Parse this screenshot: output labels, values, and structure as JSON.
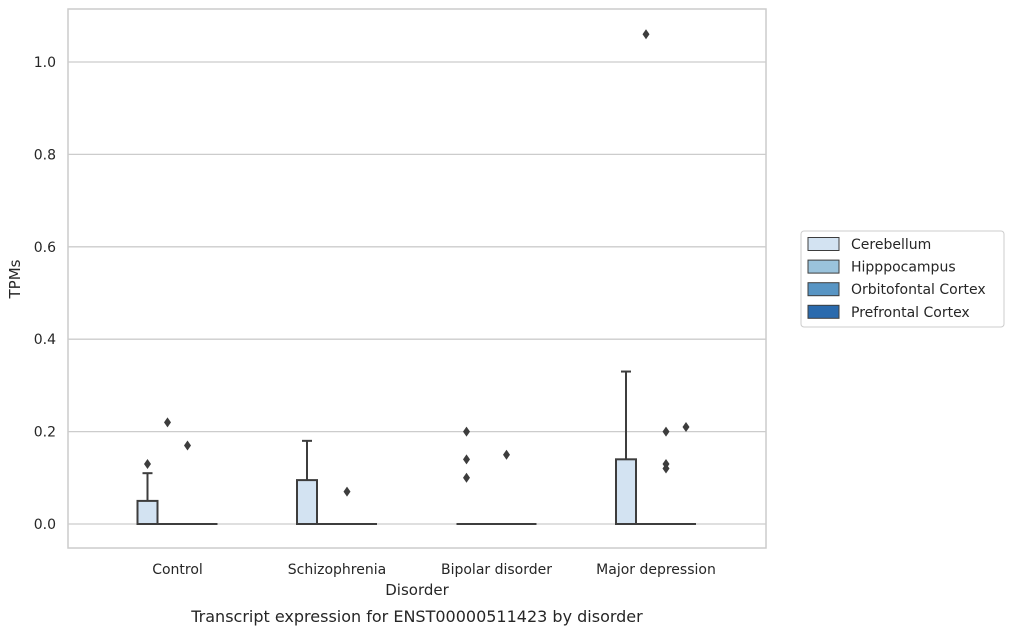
{
  "chart_data": {
    "type": "box",
    "xlabel": "Disorder",
    "ylabel": "TPMs",
    "caption": "Transcript expression for ENST00000511423 by disorder",
    "ylim": [
      -0.05,
      1.12
    ],
    "yticks": [
      "0.0",
      "0.2",
      "0.4",
      "0.6",
      "0.8",
      "1.0"
    ],
    "grid": "horizontal",
    "legend_position": "right-outside",
    "categories": [
      "Control",
      "Schizophrenia",
      "Bipolar disorder",
      "Major depression"
    ],
    "series": [
      {
        "name": "Cerebellum",
        "color": "#d3e3f2",
        "boxes": [
          {
            "min": 0,
            "q1": 0,
            "median": 0,
            "q3": 0.05,
            "max": 0.11,
            "outliers": [
              0.13
            ]
          },
          {
            "min": 0,
            "q1": 0,
            "median": 0,
            "q3": 0.095,
            "max": 0.18,
            "outliers": []
          },
          {
            "min": 0,
            "q1": 0,
            "median": 0,
            "q3": 0,
            "max": 0,
            "outliers": [
              0.1,
              0.14,
              0.2
            ]
          },
          {
            "min": 0,
            "q1": 0,
            "median": 0,
            "q3": 0.14,
            "max": 0.33,
            "outliers": []
          }
        ]
      },
      {
        "name": "Hipppocampus",
        "color": "#9ac3dc",
        "boxes": [
          {
            "min": 0,
            "q1": 0,
            "median": 0,
            "q3": 0,
            "max": 0,
            "outliers": [
              0.22
            ]
          },
          {
            "min": 0,
            "q1": 0,
            "median": 0,
            "q3": 0,
            "max": 0,
            "outliers": []
          },
          {
            "min": 0,
            "q1": 0,
            "median": 0,
            "q3": 0,
            "max": 0,
            "outliers": []
          },
          {
            "min": 0,
            "q1": 0,
            "median": 0,
            "q3": 0,
            "max": 0,
            "outliers": [
              1.06
            ]
          }
        ]
      },
      {
        "name": "Orbitofontal Cortex",
        "color": "#5895c4",
        "boxes": [
          {
            "min": 0,
            "q1": 0,
            "median": 0,
            "q3": 0,
            "max": 0,
            "outliers": [
              0.17
            ]
          },
          {
            "min": 0,
            "q1": 0,
            "median": 0,
            "q3": 0,
            "max": 0,
            "outliers": [
              0.07
            ]
          },
          {
            "min": 0,
            "q1": 0,
            "median": 0,
            "q3": 0,
            "max": 0,
            "outliers": [
              0.15
            ]
          },
          {
            "min": 0,
            "q1": 0,
            "median": 0,
            "q3": 0,
            "max": 0,
            "outliers": [
              0.12,
              0.13,
              0.2
            ]
          }
        ]
      },
      {
        "name": "Prefrontal Cortex",
        "color": "#2a6aad",
        "boxes": [
          {
            "min": 0,
            "q1": 0,
            "median": 0,
            "q3": 0,
            "max": 0,
            "outliers": []
          },
          {
            "min": 0,
            "q1": 0,
            "median": 0,
            "q3": 0,
            "max": 0,
            "outliers": []
          },
          {
            "min": 0,
            "q1": 0,
            "median": 0,
            "q3": 0,
            "max": 0,
            "outliers": []
          },
          {
            "min": 0,
            "q1": 0,
            "median": 0,
            "q3": 0,
            "max": 0,
            "outliers": [
              0.21
            ]
          }
        ]
      }
    ]
  }
}
